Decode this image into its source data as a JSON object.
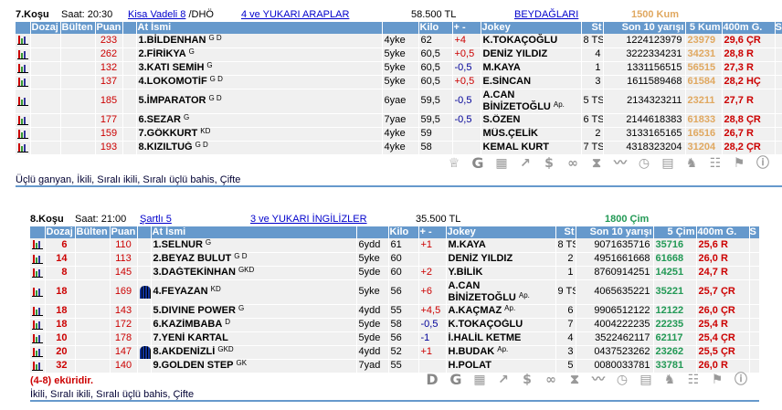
{
  "colors": {
    "header": "#6699cc",
    "puan": "#cc0000",
    "kum": "#e0a860",
    "cim": "#229955"
  },
  "races": [
    {
      "id": "r7",
      "title": "7.Koşu",
      "time": "Saat: 20:30",
      "type_link": "Kisa Vadeli  8",
      "type_suffix": "/DHÖ",
      "cond_link": "4 ve YUKARI ARAPLAR",
      "prize": "58.500 TL",
      "extra_link": "BEYDAĞLARI",
      "distance": "1500 Kum",
      "distance_class": "kum",
      "headers": [
        "",
        "Dozaj",
        "Bülten",
        "Puan",
        "",
        "At İsmi",
        "",
        "Kilo",
        "+ -",
        "Jokey",
        "St",
        "Son 10 yarışı",
        "5 Kum",
        "400m G.",
        "S"
      ],
      "rows": [
        {
          "dozaj": "",
          "puan": "233",
          "silk": false,
          "name": "1.BİLDENHAN",
          "tag": "G D",
          "age": "4yke",
          "kilo": "62",
          "pm": "+4",
          "jokey": "K.TOKAÇOĞLU",
          "ap": "",
          "st": "8 TS",
          "son": "1224123979",
          "last5": "23979",
          "g400": "29,6 ÇR"
        },
        {
          "dozaj": "",
          "puan": "262",
          "silk": false,
          "name": "2.FİRİKYA",
          "tag": "G",
          "age": "5yke",
          "kilo": "60,5",
          "pm": "+0,5",
          "jokey": "DENİZ YILDIZ",
          "ap": "",
          "st": "4",
          "son": "3222334231",
          "last5": "34231",
          "g400": "28,8 R"
        },
        {
          "dozaj": "",
          "puan": "132",
          "silk": false,
          "name": "3.KATI SEMİH",
          "tag": "G",
          "age": "5yke",
          "kilo": "60,5",
          "pm": "-0,5",
          "jokey": "M.KAYA",
          "ap": "",
          "st": "1",
          "son": "1331156515",
          "last5": "56515",
          "g400": "27,3 R"
        },
        {
          "dozaj": "",
          "puan": "137",
          "silk": false,
          "name": "4.LOKOMOTİF",
          "tag": "G D",
          "age": "5yke",
          "kilo": "60,5",
          "pm": "+0,5",
          "jokey": "E.SİNCAN",
          "ap": "",
          "st": "3",
          "son": "1611589468",
          "last5": "61584",
          "g400": "28,2 HÇ"
        },
        {
          "dozaj": "",
          "puan": "185",
          "silk": false,
          "name": "5.İMPARATOR",
          "tag": "G D",
          "age": "6yae",
          "kilo": "59,5",
          "pm": "-0,5",
          "jokey": "A.CAN BİNİZETOĞLU",
          "ap": "Ap.",
          "st": "5 TS",
          "son": "2134323211",
          "last5": "23211",
          "g400": "27,7 R"
        },
        {
          "dozaj": "",
          "puan": "177",
          "silk": false,
          "name": "6.SEZAR",
          "tag": "G",
          "age": "7yae",
          "kilo": "59,5",
          "pm": "-0,5",
          "jokey": "S.ÖZEN",
          "ap": "",
          "st": "6 TS",
          "son": "2144618383",
          "last5": "61833",
          "g400": "28,8 ÇR"
        },
        {
          "dozaj": "",
          "puan": "159",
          "silk": false,
          "name": "7.GÖKKURT",
          "tag": "KD",
          "age": "4yke",
          "kilo": "59",
          "pm": "",
          "jokey": "MÜS.ÇELİK",
          "ap": "",
          "st": "2",
          "son": "3133165165",
          "last5": "16516",
          "g400": "26,7 R"
        },
        {
          "dozaj": "",
          "puan": "193",
          "silk": false,
          "name": "8.KIZILTUĞ",
          "tag": "G D",
          "age": "4yke",
          "kilo": "58",
          "pm": "",
          "jokey": "KEMAL KURT",
          "ap": "",
          "st": "7 TS",
          "son": "4318323204",
          "last5": "31204",
          "g400": "28,2 ÇR"
        }
      ],
      "ekuri": "",
      "bets": "Üçlü ganyan, İkili, Sıralı ikili, Sıralı üçlü bahis, Çifte",
      "icons": [
        "trophy-icon",
        "g-icon",
        "hourglass-calc-icon",
        "trend-icon",
        "dollar-icon",
        "binoculars-icon",
        "hourglass-icon",
        "line-chart-icon",
        "stopwatch-icon",
        "calculator-icon",
        "horse-icon",
        "people-icon",
        "flag-icon",
        "info-icon"
      ]
    },
    {
      "id": "r8",
      "title": "8.Koşu",
      "time": "Saat: 21:00",
      "type_link": "Şartlı  5",
      "type_suffix": "",
      "cond_link": "3 ve YUKARI İNGİLİZLER",
      "prize": "35.500 TL",
      "extra_link": "",
      "distance": "1800 Çim",
      "distance_class": "cim",
      "headers": [
        "",
        "Dozaj",
        "Bülten",
        "Puan",
        "",
        "At İsmi",
        "",
        "Kilo",
        "+ -",
        "Jokey",
        "St",
        "Son 10 yarışı",
        "5 Çim",
        "400m G.",
        "S"
      ],
      "rows": [
        {
          "dozaj": "6",
          "puan": "110",
          "silk": false,
          "name": "1.SELNUR",
          "tag": "G",
          "age": "6ydd",
          "kilo": "61",
          "pm": "+1",
          "jokey": "M.KAYA",
          "ap": "",
          "st": "8 TS",
          "son": "9071635716",
          "last5": "35716",
          "g400": "25,6 R"
        },
        {
          "dozaj": "14",
          "puan": "113",
          "silk": false,
          "name": "2.BEYAZ BULUT",
          "tag": "G D",
          "age": "5yke",
          "kilo": "60",
          "pm": "",
          "jokey": "DENİZ YILDIZ",
          "ap": "",
          "st": "2",
          "son": "4951661668",
          "last5": "61668",
          "g400": "26,0 R"
        },
        {
          "dozaj": "8",
          "puan": "145",
          "silk": false,
          "name": "3.DAĞTEKİNHAN",
          "tag": "GKD",
          "age": "5yde",
          "kilo": "60",
          "pm": "+2",
          "jokey": "Y.BİLİK",
          "ap": "",
          "st": "1",
          "son": "8760914251",
          "last5": "14251",
          "g400": "24,7 R"
        },
        {
          "dozaj": "18",
          "puan": "169",
          "silk": true,
          "name": "4.FEYAZAN",
          "tag": "KD",
          "age": "5yke",
          "kilo": "56",
          "pm": "+6",
          "jokey": "A.CAN BİNİZETOĞLU",
          "ap": "Ap.",
          "st": "9 TS",
          "son": "4065635221",
          "last5": "35221",
          "g400": "25,7 ÇR"
        },
        {
          "dozaj": "18",
          "puan": "143",
          "silk": false,
          "name": "5.DIVINE POWER",
          "tag": "G",
          "age": "4ydd",
          "kilo": "55",
          "pm": "+4,5",
          "jokey": "A.KAÇMAZ",
          "ap": "Ap.",
          "st": "6",
          "son": "9906512122",
          "last5": "12122",
          "g400": "26,0 ÇR"
        },
        {
          "dozaj": "18",
          "puan": "172",
          "silk": false,
          "name": "6.KAZİMBABA",
          "tag": "D",
          "age": "5yde",
          "kilo": "58",
          "pm": "-0,5",
          "jokey": "K.TOKAÇOĞLU",
          "ap": "",
          "st": "7",
          "son": "4004222235",
          "last5": "22235",
          "g400": "25,4 R"
        },
        {
          "dozaj": "10",
          "puan": "178",
          "silk": false,
          "name": "7.YENİ KARTAL",
          "tag": "",
          "age": "5yde",
          "kilo": "56",
          "pm": "-1",
          "jokey": "İ.HALİL KETME",
          "ap": "",
          "st": "4",
          "son": "3522462117",
          "last5": "62117",
          "g400": "25,4 ÇR"
        },
        {
          "dozaj": "20",
          "puan": "147",
          "silk": true,
          "name": "8.AKDENİZLİ",
          "tag": "GKD",
          "age": "4ydd",
          "kilo": "52",
          "pm": "+1",
          "jokey": "H.BUDAK",
          "ap": "Ap.",
          "st": "3",
          "son": "0437523262",
          "last5": "23262",
          "g400": "25,5 ÇR"
        },
        {
          "dozaj": "32",
          "puan": "140",
          "silk": false,
          "name": "9.GOLDEN STEP",
          "tag": "GK",
          "age": "7yad",
          "kilo": "55",
          "pm": "",
          "jokey": "H.POLAT",
          "ap": "",
          "st": "5",
          "son": "0080033781",
          "last5": "33781",
          "g400": "26,0 R"
        }
      ],
      "ekuri": "(4-8) eküridir.",
      "bets": " İkili, Sıralı ikili, Sıralı üçlü bahis, Çifte",
      "icons": [
        "d-icon",
        "g-icon",
        "hourglass-calc-icon",
        "trend-icon",
        "dollar-icon",
        "binoculars-icon",
        "hourglass-icon",
        "line-chart-icon",
        "stopwatch-icon",
        "calculator-icon",
        "horse-icon",
        "people-icon",
        "flag-icon",
        "info-icon"
      ]
    }
  ]
}
